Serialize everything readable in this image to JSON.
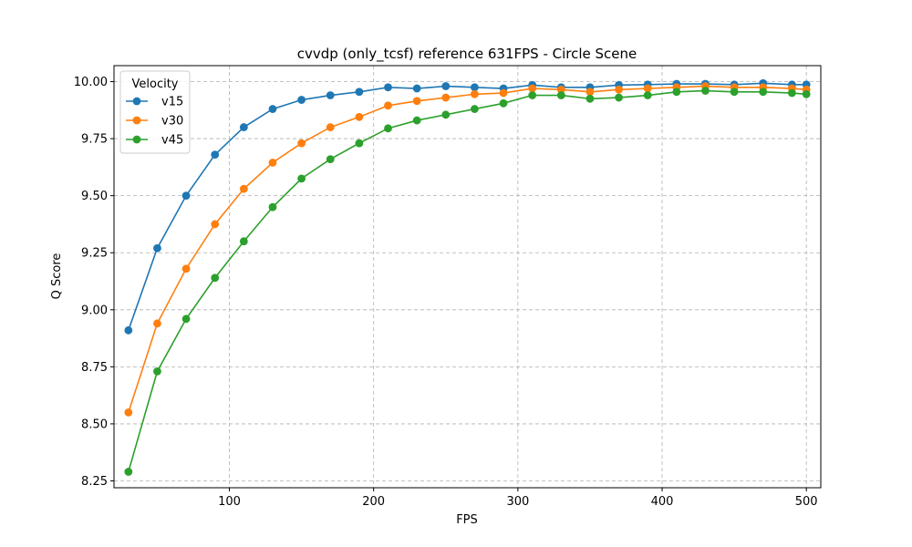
{
  "chart_data": {
    "type": "line",
    "title": "cvvdp (only_tcsf) reference 631FPS - Circle Scene",
    "xlabel": "FPS",
    "ylabel": "Q Score",
    "xlim": [
      20,
      510
    ],
    "ylim": [
      8.22,
      10.07
    ],
    "xticks": [
      100,
      200,
      300,
      400,
      500
    ],
    "yticks": [
      8.25,
      8.5,
      8.75,
      9.0,
      9.25,
      9.5,
      9.75,
      10.0
    ],
    "ytick_labels": [
      "8.25",
      "8.50",
      "8.75",
      "9.00",
      "9.25",
      "9.50",
      "9.75",
      "10.00"
    ],
    "grid": true,
    "legend_title": "Velocity",
    "legend_location": "top-left",
    "x": [
      30,
      50,
      70,
      90,
      110,
      130,
      150,
      170,
      190,
      210,
      230,
      250,
      270,
      290,
      310,
      330,
      350,
      370,
      390,
      410,
      430,
      450,
      470,
      490,
      500
    ],
    "series": [
      {
        "name": "v15",
        "color": "#1f77b4",
        "values": [
          8.91,
          9.27,
          9.5,
          9.68,
          9.8,
          9.88,
          9.92,
          9.94,
          9.955,
          9.975,
          9.97,
          9.98,
          9.975,
          9.97,
          9.985,
          9.975,
          9.975,
          9.985,
          9.987,
          9.99,
          9.99,
          9.987,
          9.993,
          9.987,
          9.987
        ]
      },
      {
        "name": "v30",
        "color": "#ff7f0e",
        "values": [
          8.55,
          8.94,
          9.18,
          9.375,
          9.53,
          9.645,
          9.73,
          9.8,
          9.845,
          9.895,
          9.915,
          9.93,
          9.945,
          9.95,
          9.97,
          9.965,
          9.955,
          9.965,
          9.97,
          9.975,
          9.98,
          9.975,
          9.975,
          9.97,
          9.965
        ]
      },
      {
        "name": "v45",
        "color": "#2ca02c",
        "values": [
          8.29,
          8.73,
          8.96,
          9.14,
          9.3,
          9.45,
          9.575,
          9.66,
          9.73,
          9.795,
          9.83,
          9.855,
          9.88,
          9.905,
          9.94,
          9.94,
          9.925,
          9.93,
          9.94,
          9.955,
          9.96,
          9.955,
          9.955,
          9.95,
          9.945
        ]
      }
    ]
  }
}
